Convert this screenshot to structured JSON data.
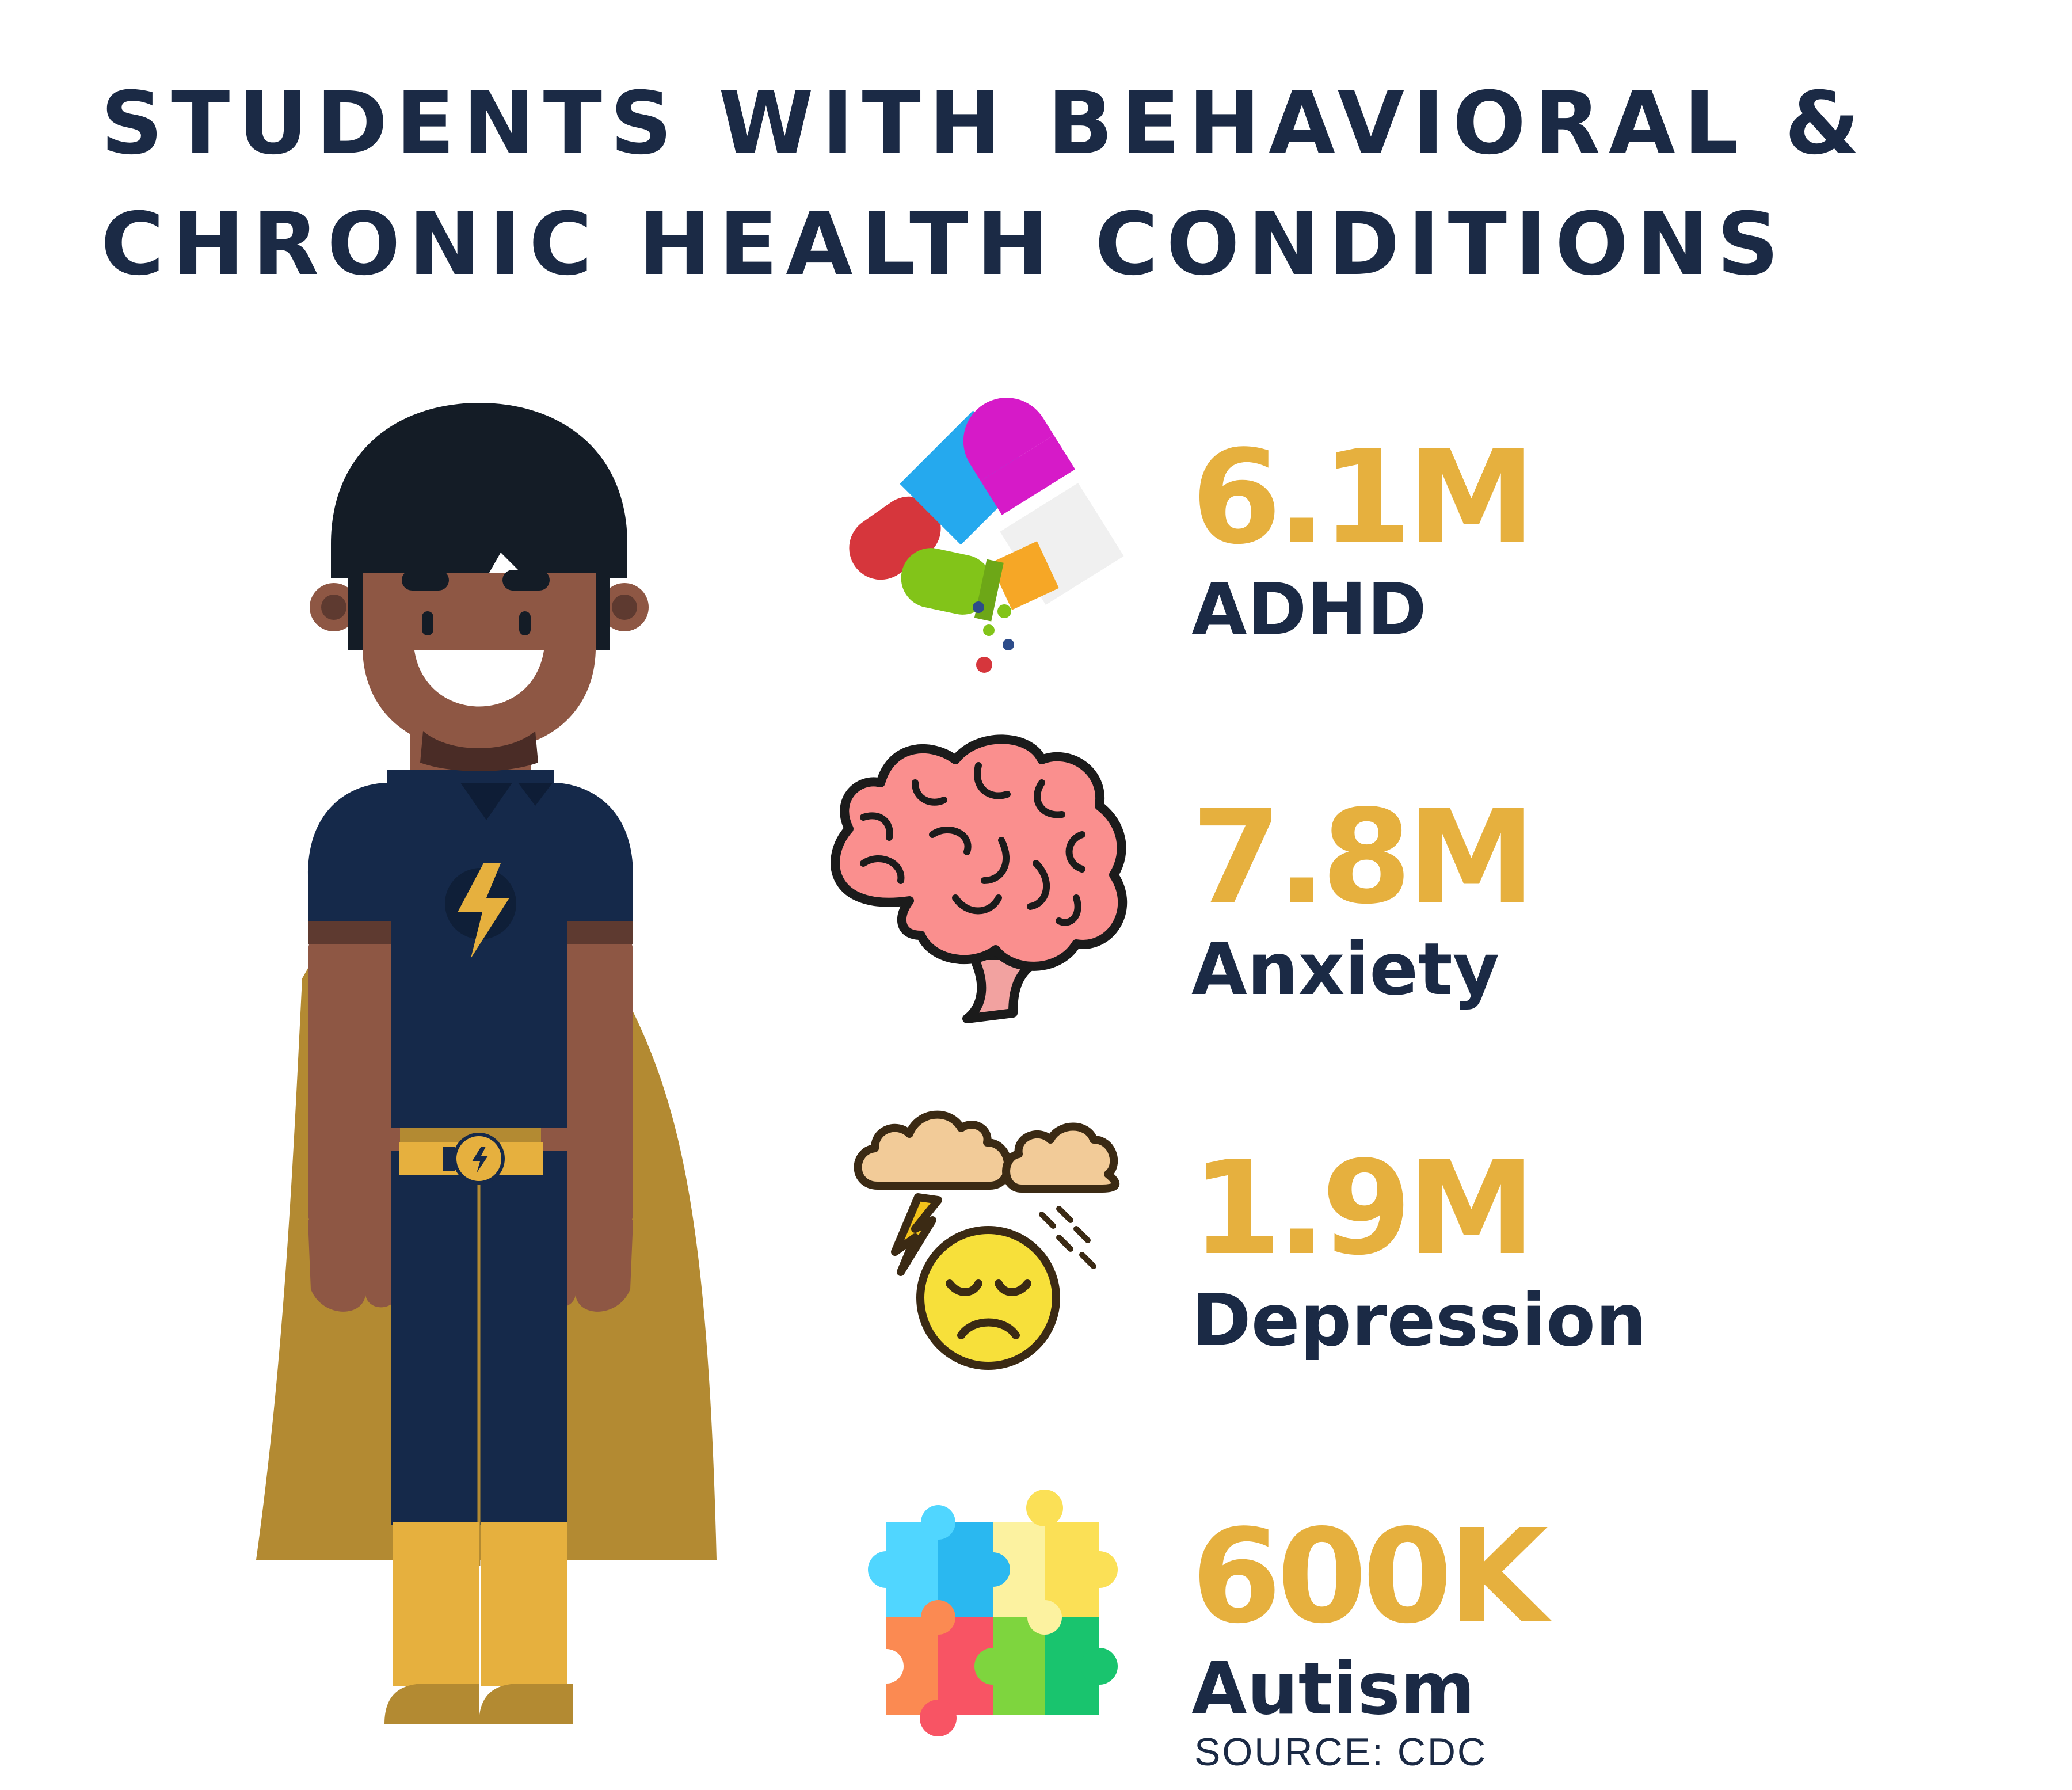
{
  "title": {
    "line1": "STUDENTS WITH BEHAVIORAL &",
    "line2": "CHRONIC HEALTH CONDITIONS"
  },
  "stats": [
    {
      "value": "6.1M",
      "label": "ADHD",
      "icon": "pills-icon"
    },
    {
      "value": "7.8M",
      "label": "Anxiety",
      "icon": "brain-icon"
    },
    {
      "value": "1.9M",
      "label": "Depression",
      "icon": "storm-cloud-sad-face-icon"
    },
    {
      "value": "600K",
      "label": "Autism",
      "icon": "puzzle-pieces-icon"
    }
  ],
  "source": "SOURCE: CDC",
  "colors": {
    "navy": "#1b2a45",
    "gold": "#e6b03e",
    "skin": "#8e5744",
    "cape": "#b38a32"
  }
}
